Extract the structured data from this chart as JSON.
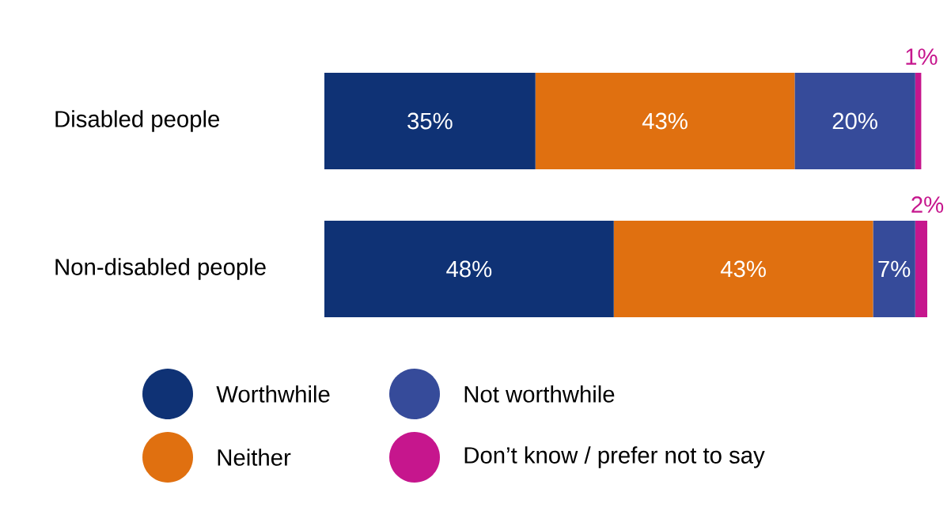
{
  "chart_data": {
    "type": "bar",
    "orientation": "horizontal",
    "stacked": true,
    "legend": "bottom",
    "categories": [
      "Disabled people",
      "Non-disabled people"
    ],
    "series": [
      {
        "name": "Worthwhile",
        "color": "#0f3275",
        "values": [
          35,
          48
        ],
        "value_labels": [
          "35%",
          "48%"
        ]
      },
      {
        "name": "Neither",
        "color": "#e07010",
        "values": [
          43,
          43
        ],
        "value_labels": [
          "43%",
          "43%"
        ]
      },
      {
        "name": "Not worthwhile",
        "color": "#364b9a",
        "values": [
          20,
          7
        ],
        "value_labels": [
          "20%",
          "7%"
        ]
      },
      {
        "name": "Don’t know / prefer not to say",
        "color": "#c6168d",
        "values": [
          1,
          2
        ],
        "value_labels": [
          "1%",
          "2%"
        ]
      }
    ]
  }
}
